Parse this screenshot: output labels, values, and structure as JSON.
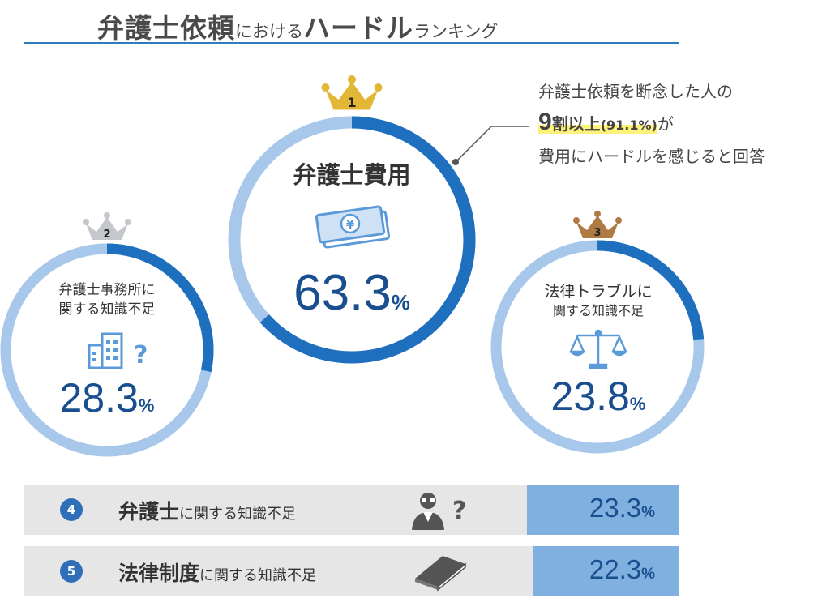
{
  "title": {
    "part1": "弁護士依頼",
    "part2": "における",
    "part3": "ハードル",
    "part4": "ランキング"
  },
  "callout": {
    "line1": "弁護士依頼を断念した人の",
    "highlight_num": "9",
    "highlight_text": "割以上",
    "highlight_paren": "(91.1%)",
    "line2_suffix": "が",
    "line3": "費用にハードルを感じると回答"
  },
  "unit": "%",
  "chart_data": {
    "type": "ranking",
    "ring_colors": {
      "fill": "#1f6fbf",
      "track": "#a7c8ea",
      "row_value_bg": "#7fb0e0",
      "row_bg": "#e6e6e6"
    },
    "crown_colors": {
      "1": "#e3b736",
      "2": "#c4c8cc",
      "3": "#b07a45"
    },
    "items": [
      {
        "rank": "1",
        "label_lines": [
          "弁護士費用"
        ],
        "value": 63.3,
        "value_text": "63.3",
        "icon": "yen-banknote-icon"
      },
      {
        "rank": "2",
        "label_lines": [
          "弁護士事務所に",
          "関する知識不足"
        ],
        "value": 28.3,
        "value_text": "28.3",
        "icon": "office-building-question-icon"
      },
      {
        "rank": "3",
        "label_lines": [
          "法律トラブルに",
          "関する知識不足"
        ],
        "value": 23.8,
        "value_text": "23.8",
        "icon": "scales-icon"
      },
      {
        "rank": "4",
        "label_bold": "弁護士",
        "label_rest": "に関する知識不足",
        "value": 23.3,
        "value_text": "23.3",
        "icon": "lawyer-question-icon"
      },
      {
        "rank": "5",
        "label_bold": "法律制度",
        "label_rest": "に関する知識不足",
        "value": 22.3,
        "value_text": "22.3",
        "icon": "book-icon"
      }
    ]
  }
}
